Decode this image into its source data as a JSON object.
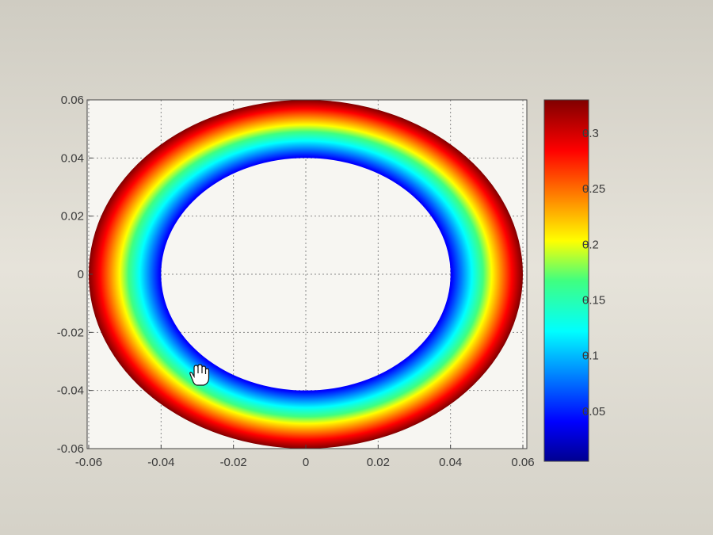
{
  "chart_data": {
    "type": "heatmap",
    "subtype": "annulus-filled-contour",
    "title": "",
    "xlabel": "",
    "ylabel": "",
    "xlim": [
      -0.06,
      0.06
    ],
    "ylim": [
      -0.06,
      0.06
    ],
    "x_ticks": [
      -0.06,
      -0.04,
      -0.02,
      0,
      0.02,
      0.04,
      0.06
    ],
    "y_ticks": [
      -0.06,
      -0.04,
      -0.02,
      0,
      0.02,
      0.04,
      0.06
    ],
    "x_tick_labels": [
      "-0.06",
      "-0.04",
      "-0.02",
      "0",
      "0.02",
      "0.04",
      "0.06"
    ],
    "y_tick_labels": [
      "-0.06",
      "-0.04",
      "-0.02",
      "0",
      "0.02",
      "0.04",
      "0.06"
    ],
    "grid": true,
    "inner_radius": 0.04,
    "outer_radius": 0.06,
    "value_range": [
      0.005,
      0.33
    ],
    "colorbar": {
      "range": [
        0.005,
        0.33
      ],
      "ticks": [
        0.05,
        0.1,
        0.15,
        0.2,
        0.25,
        0.3
      ],
      "tick_labels": [
        "0.05",
        "0.1",
        "0.15",
        "0.2",
        "0.25",
        "0.3"
      ],
      "colormap": "jet",
      "placement": "right"
    }
  },
  "colors": {
    "background": "#d9d6cc",
    "plot_background": "#f7f6f2",
    "axis": "#444444",
    "grid": "#8a8a8a"
  }
}
